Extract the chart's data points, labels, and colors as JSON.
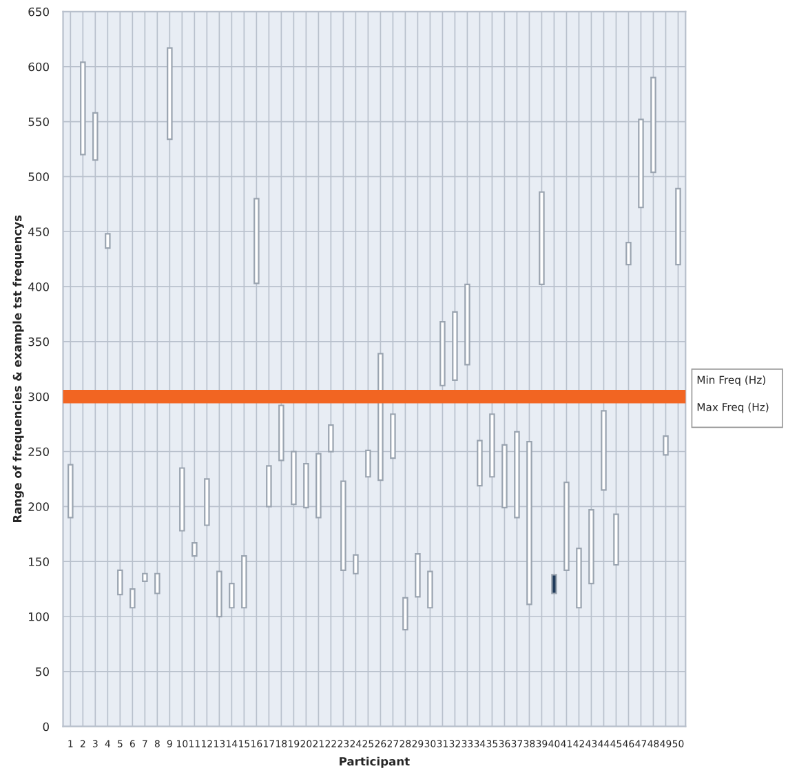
{
  "chart_data": {
    "type": "bar",
    "xlabel": "Participant",
    "ylabel": "Range of frequencies & example tst frequencys",
    "categories": [
      "1",
      "2",
      "3",
      "4",
      "5",
      "6",
      "7",
      "8",
      "9",
      "10",
      "11",
      "12",
      "13",
      "14",
      "15",
      "16",
      "17",
      "18",
      "19",
      "20",
      "21",
      "22",
      "23",
      "24",
      "25",
      "26",
      "27",
      "28",
      "29",
      "30",
      "31",
      "32",
      "33",
      "34",
      "35",
      "36",
      "37",
      "38",
      "39",
      "40",
      "41",
      "42",
      "43",
      "44",
      "45",
      "46",
      "47",
      "48",
      "49",
      "50"
    ],
    "base": [
      190,
      520,
      515,
      435,
      120,
      108,
      132,
      121,
      534,
      178,
      155,
      183,
      100,
      108,
      108,
      403,
      200,
      242,
      202,
      199,
      190,
      250,
      142,
      139,
      227,
      224,
      244,
      88,
      118,
      108,
      310,
      315,
      329,
      219,
      227,
      199,
      190,
      111,
      402,
      121,
      142,
      108,
      130,
      215,
      147,
      420,
      472,
      504,
      247,
      420
    ],
    "values": [
      48,
      84,
      43,
      13,
      22,
      17,
      7,
      18,
      83,
      57,
      12,
      42,
      41,
      22,
      47,
      77,
      37,
      50,
      48,
      40,
      58,
      24,
      81,
      17,
      24,
      115,
      40,
      29,
      39,
      33,
      58,
      62,
      73,
      41,
      57,
      57,
      78,
      148,
      84,
      17,
      80,
      54,
      67,
      72,
      46,
      20,
      80,
      86,
      17,
      69
    ],
    "colors": [
      "#ffffff",
      "#ffffff",
      "#ffffff",
      "#ffffff",
      "#ffffff",
      "#ffffff",
      "#ffffff",
      "#ffffff",
      "#ffffff",
      "#ffffff",
      "#ffffff",
      "#ffffff",
      "#ffffff",
      "#ffffff",
      "#ffffff",
      "#ffffff",
      "#ffffff",
      "#ffffff",
      "#ffffff",
      "#ffffff",
      "#ffffff",
      "#ffffff",
      "#ffffff",
      "#ffffff",
      "#ffffff",
      "#ffffff",
      "#ffffff",
      "#ffffff",
      "#ffffff",
      "#ffffff",
      "#ffffff",
      "#ffffff",
      "#ffffff",
      "#ffffff",
      "#ffffff",
      "#ffffff",
      "#ffffff",
      "#ffffff",
      "#ffffff",
      "#1f3a5a",
      "#ffffff",
      "#ffffff",
      "#ffffff",
      "#ffffff",
      "#ffffff",
      "#ffffff",
      "#ffffff",
      "#ffffff",
      "#ffffff",
      "#ffffff"
    ],
    "ylim": [
      0,
      650
    ],
    "yticks": [
      0,
      50,
      100,
      150,
      200,
      250,
      300,
      350,
      400,
      450,
      500,
      550,
      600,
      650
    ],
    "grid": true,
    "ref_lines": [
      {
        "axis": "y",
        "value": 300,
        "color": "#f26522"
      }
    ],
    "annotations": [
      "Min Freq (Hz)",
      "Max Freq (Hz)"
    ]
  }
}
